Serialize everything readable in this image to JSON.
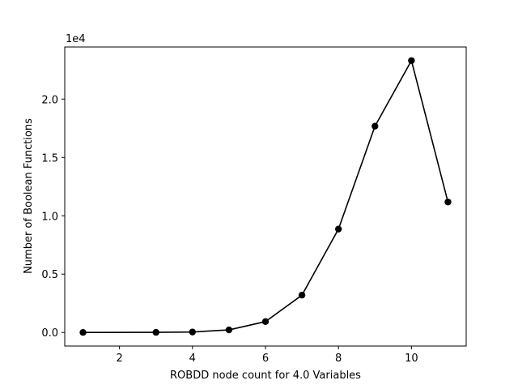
{
  "chart_data": {
    "type": "line",
    "title": "",
    "xlabel": "ROBDD node count for 4.0 Variables",
    "ylabel": "Number of Boolean Functions",
    "offset_text": "1e4",
    "x": [
      1,
      3,
      4,
      5,
      6,
      7,
      8,
      9,
      10,
      11
    ],
    "series": [
      {
        "values": [
          2,
          8,
          40,
          220,
          930,
          3200,
          8860,
          17680,
          23300,
          11180
        ]
      }
    ],
    "xlim": [
      0.5,
      11.5
    ],
    "ylim": [
      -1165,
      24465
    ],
    "xticks": [
      2,
      4,
      6,
      8,
      10
    ],
    "xtick_labels": [
      "2",
      "4",
      "6",
      "8",
      "10"
    ],
    "yticks": [
      0,
      5000,
      10000,
      15000,
      20000
    ],
    "ytick_labels": [
      "0.0",
      "0.5",
      "1.0",
      "1.5",
      "2.0"
    ],
    "line_color": "#000000",
    "marker": "circle",
    "grid": false,
    "legend": "none"
  }
}
